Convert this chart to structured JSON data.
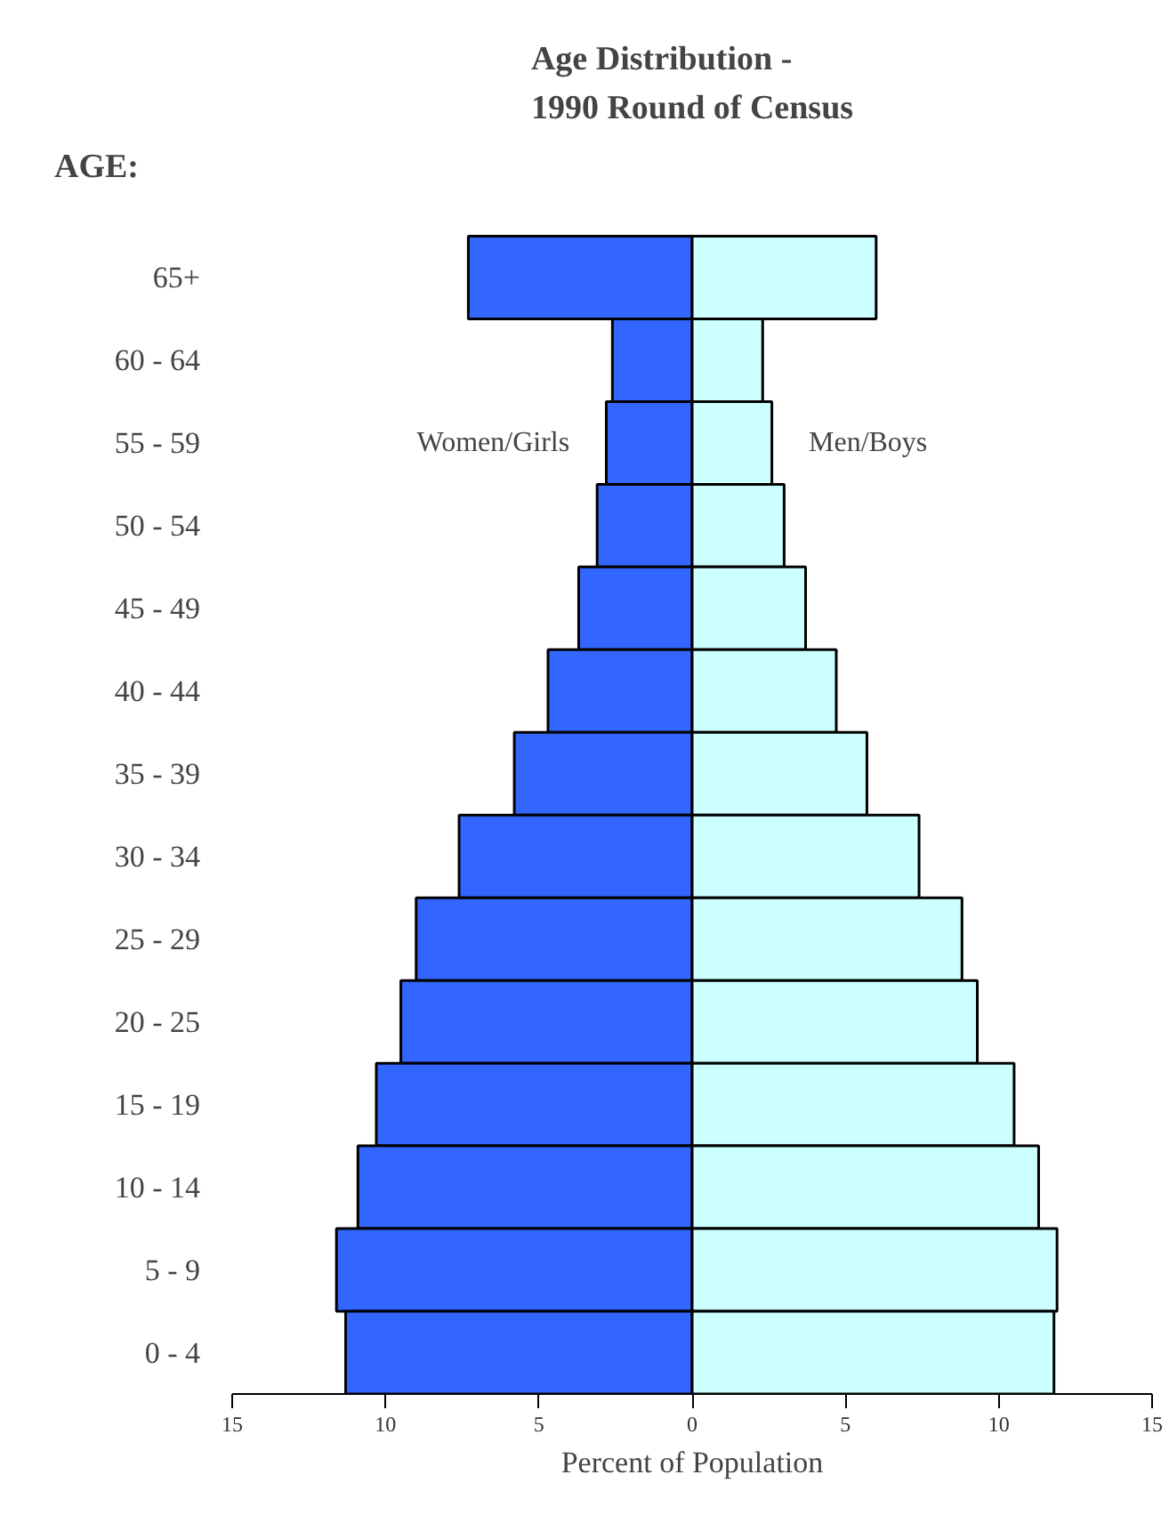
{
  "chart_data": {
    "type": "bar",
    "orientation": "horizontal",
    "stacked": true,
    "title": "Age Distribution -\n1990 Round of Census",
    "ylabel": "AGE:",
    "xlabel": "Percent of Population",
    "categories": [
      "65+",
      "60 - 64",
      "55 - 59",
      "50 - 54",
      "45 - 49",
      "40 - 44",
      "35 - 39",
      "30 - 34",
      "25 - 29",
      "20 - 25",
      "15 - 19",
      "10 - 14",
      "5 - 9",
      "0 - 4"
    ],
    "series": [
      {
        "name": "Women/Girls",
        "color": "#3366ff",
        "values": [
          -7.3,
          -2.6,
          -2.8,
          -3.1,
          -3.7,
          -4.7,
          -5.8,
          -7.6,
          -9.0,
          -9.5,
          -10.3,
          -10.9,
          -11.6,
          -11.3
        ]
      },
      {
        "name": "Men/Boys",
        "color": "#ccffff",
        "values": [
          6.0,
          2.3,
          2.6,
          3.0,
          3.7,
          4.7,
          5.7,
          7.4,
          8.8,
          9.3,
          10.5,
          11.3,
          11.9,
          11.8
        ]
      }
    ],
    "xlim": [
      -15,
      15
    ],
    "xticks": [
      {
        "value": -15,
        "label": "15"
      },
      {
        "value": -10,
        "label": "10"
      },
      {
        "value": -5,
        "label": "5"
      },
      0,
      5,
      10,
      15
    ],
    "grid": false
  }
}
